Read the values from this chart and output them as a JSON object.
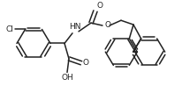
{
  "bg_color": "#ffffff",
  "line_color": "#222222",
  "lw": 1.1,
  "figsize": [
    2.06,
    0.98
  ],
  "dpi": 100,
  "xlim": [
    0,
    206
  ],
  "ylim": [
    0,
    98
  ],
  "font_size": 6.5
}
